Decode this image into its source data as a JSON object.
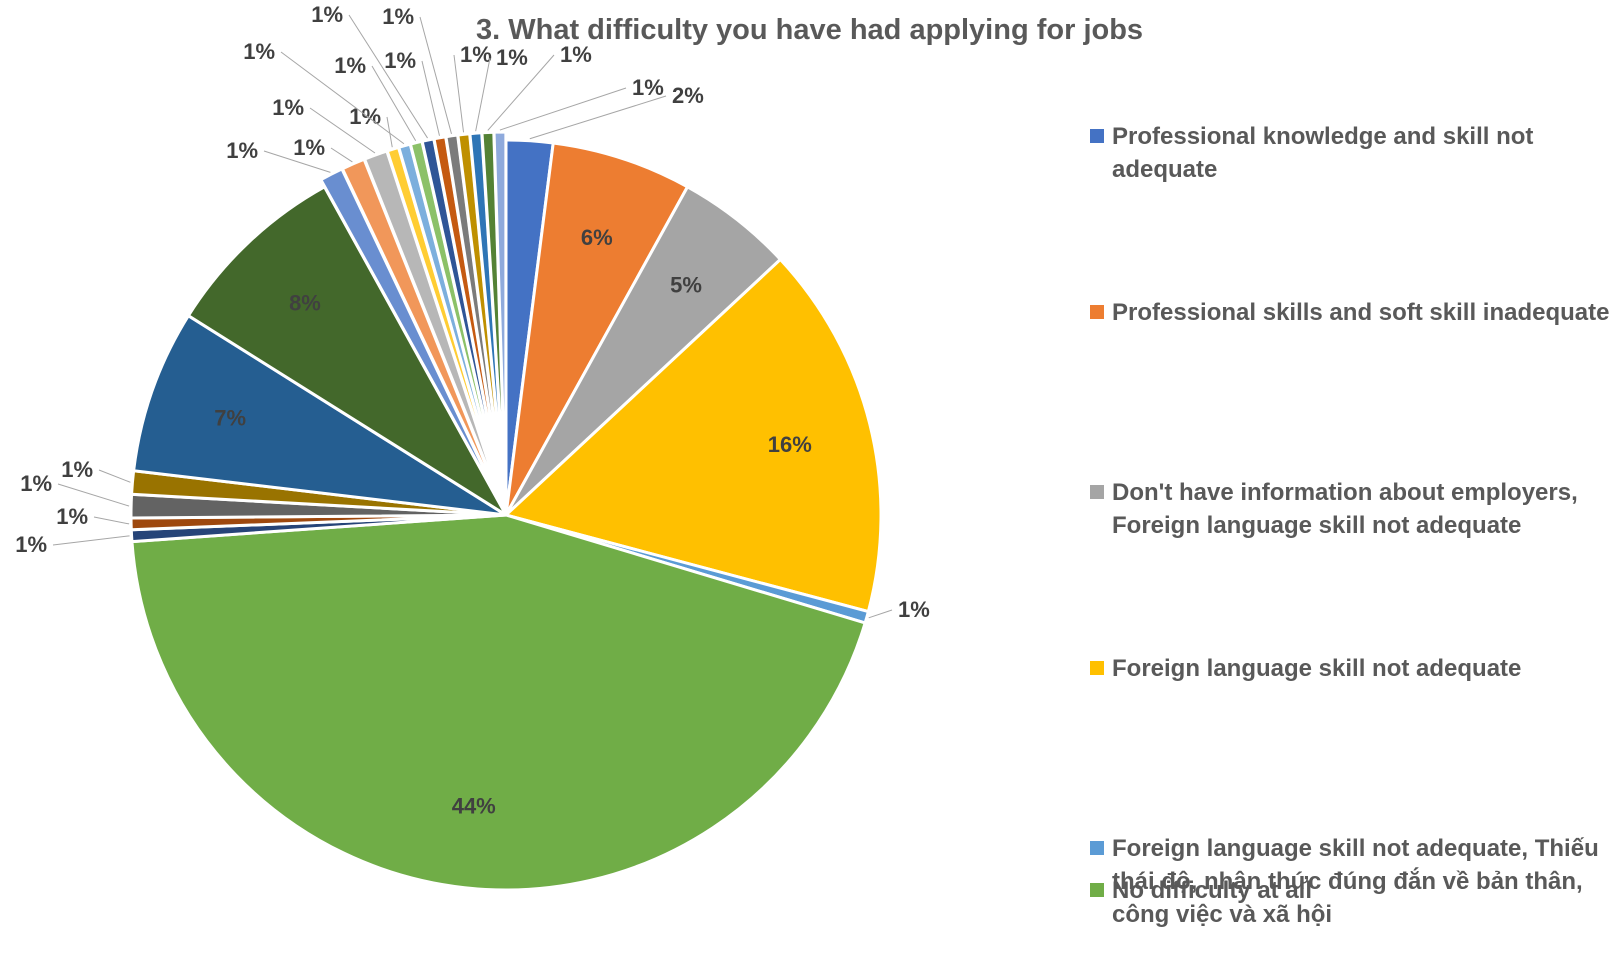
{
  "chart_data": {
    "type": "pie",
    "title": "3. What difficulty you have had applying for jobs",
    "slices": [
      {
        "label": "2%",
        "value": 2,
        "color": "#4472C4"
      },
      {
        "label": "6%",
        "value": 6,
        "color": "#ED7D31"
      },
      {
        "label": "5%",
        "value": 5,
        "color": "#A5A5A5"
      },
      {
        "label": "16%",
        "value": 16,
        "color": "#FFC000"
      },
      {
        "label": "1%",
        "value": 0.5,
        "color": "#5B9BD5"
      },
      {
        "label": "44%",
        "value": 44,
        "color": "#70AD47"
      },
      {
        "label": "1%",
        "value": 0.5,
        "color": "#264478"
      },
      {
        "label": "1%",
        "value": 0.5,
        "color": "#9E480E"
      },
      {
        "label": "1%",
        "value": 1.0,
        "color": "#636363"
      },
      {
        "label": "1%",
        "value": 1.0,
        "color": "#997300"
      },
      {
        "label": "7%",
        "value": 7,
        "color": "#255E91"
      },
      {
        "label": "8%",
        "value": 8,
        "color": "#43682B"
      },
      {
        "label": "1%",
        "value": 1.0,
        "color": "#698ED0"
      },
      {
        "label": "1%",
        "value": 1.0,
        "color": "#F1975A"
      },
      {
        "label": "1%",
        "value": 1.0,
        "color": "#B7B7B7"
      },
      {
        "label": "1%",
        "value": 0.5,
        "color": "#FFCD33"
      },
      {
        "label": "1%",
        "value": 0.5,
        "color": "#7CAFDD"
      },
      {
        "label": "1%",
        "value": 0.5,
        "color": "#8CC168"
      },
      {
        "label": "1%",
        "value": 0.5,
        "color": "#2F5597"
      },
      {
        "label": "1%",
        "value": 0.5,
        "color": "#C55A11"
      },
      {
        "label": "1%",
        "value": 0.5,
        "color": "#7B7B7B"
      },
      {
        "label": "1%",
        "value": 0.5,
        "color": "#BF9000"
      },
      {
        "label": "1%",
        "value": 0.5,
        "color": "#2E75B6"
      },
      {
        "label": "1%",
        "value": 0.5,
        "color": "#548235"
      },
      {
        "label": "1%",
        "value": 0.5,
        "color": "#8FAADC"
      }
    ],
    "legend": [
      {
        "label": "Professional knowledge and skill not adequate",
        "color": "#4472C4"
      },
      {
        "label": "Professional skills and soft skill inadequate",
        "color": "#ED7D31"
      },
      {
        "label": "Don't have information about employers, Foreign language skill not adequate",
        "color": "#A5A5A5"
      },
      {
        "label": "Foreign language skill not adequate",
        "color": "#FFC000"
      },
      {
        "label": "Foreign language skill not adequate, Thiếu thái độ, nhận thức đúng đắn về bản thân, công việc và xã hội",
        "color": "#5B9BD5"
      },
      {
        "label": "No difficulty at all",
        "color": "#70AD47"
      }
    ],
    "legend_position": "right"
  }
}
